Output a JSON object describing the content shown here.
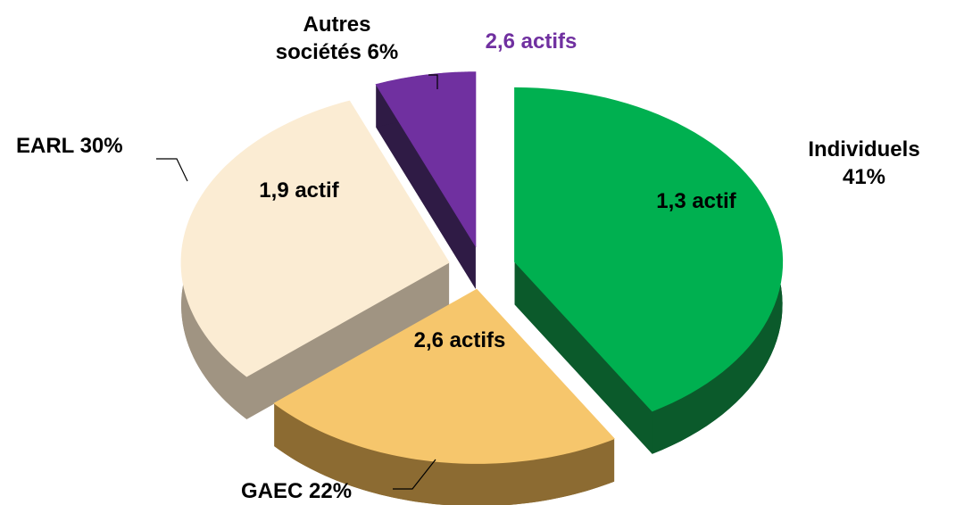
{
  "chart_data": {
    "type": "pie",
    "categories": [
      "Individuels",
      "GAEC",
      "EARL",
      "Autres sociétés"
    ],
    "values": [
      41,
      22,
      30,
      6
    ],
    "value_labels": [
      "41%",
      "22%",
      "30%",
      "6%"
    ],
    "annotations": [
      "1,3 actif",
      "2,6 actifs",
      "1,9 actif",
      "2,6 actifs"
    ],
    "colors": [
      "#00b050",
      "#f6c66c",
      "#fbecd3",
      "#7030a0"
    ],
    "side_colors": [
      "#0b5a2b",
      "#8c6b32",
      "#a09482",
      "#2f1b45"
    ]
  }
}
